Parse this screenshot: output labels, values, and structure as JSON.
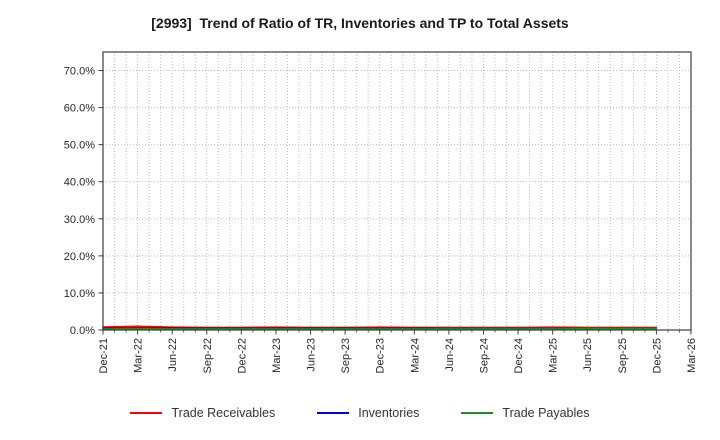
{
  "title": "[2993]  Trend of Ratio of TR, Inventories and TP to Total Assets",
  "chart_data": {
    "type": "line",
    "title": "[2993]  Trend of Ratio of TR, Inventories and TP to Total Assets",
    "x_tick_labels": [
      "Dec-21",
      "Mar-22",
      "Jun-22",
      "Sep-22",
      "Dec-22",
      "Mar-23",
      "Jun-23",
      "Sep-23",
      "Dec-23",
      "Mar-24",
      "Jun-24",
      "Sep-24",
      "Dec-24",
      "Mar-25",
      "Jun-25",
      "Sep-25",
      "Dec-25",
      "Mar-26"
    ],
    "y_tick_labels": [
      "0.0%",
      "10.0%",
      "20.0%",
      "30.0%",
      "40.0%",
      "50.0%",
      "60.0%",
      "70.0%"
    ],
    "ylabel": "",
    "xlabel": "",
    "ylim": [
      0,
      75
    ],
    "y_major_step_pct": 10,
    "months_span": 51,
    "months_per_major_tick": 3,
    "grid": "dotted; vertical line every month, horizontal line every 10%",
    "legend_position": "bottom-center",
    "units": "percent of total assets",
    "series": [
      {
        "name": "Trade Receivables",
        "color": "#ff0000",
        "values": [
          0.8,
          1.0,
          0.75,
          0.7,
          0.7,
          0.75,
          0.7,
          0.7,
          0.75,
          0.7,
          0.7,
          0.7,
          0.7,
          0.75,
          0.7,
          0.7,
          0.7
        ]
      },
      {
        "name": "Inventories",
        "color": "#0000ee",
        "values": [
          0.5,
          0.55,
          0.5,
          0.45,
          0.45,
          0.45,
          0.45,
          0.45,
          0.45,
          0.45,
          0.4,
          0.4,
          0.4,
          0.4,
          0.4,
          0.4,
          0.4
        ]
      },
      {
        "name": "Trade Payables",
        "color": "#228b22",
        "values": [
          0.3,
          0.35,
          0.3,
          0.3,
          0.3,
          0.3,
          0.3,
          0.3,
          0.3,
          0.3,
          0.3,
          0.3,
          0.3,
          0.3,
          0.35,
          0.35,
          0.35
        ]
      }
    ]
  },
  "legend": {
    "items": [
      {
        "label": "Trade Receivables",
        "color": "#ff0000"
      },
      {
        "label": "Inventories",
        "color": "#0000ee"
      },
      {
        "label": "Trade Payables",
        "color": "#228b22"
      }
    ]
  },
  "colors": {
    "background": "#ffffff",
    "grid": "#b5b5b5",
    "axis_border": "#3c3c3c",
    "tick_text": "#262626",
    "title_text": "#1a1a1a"
  }
}
